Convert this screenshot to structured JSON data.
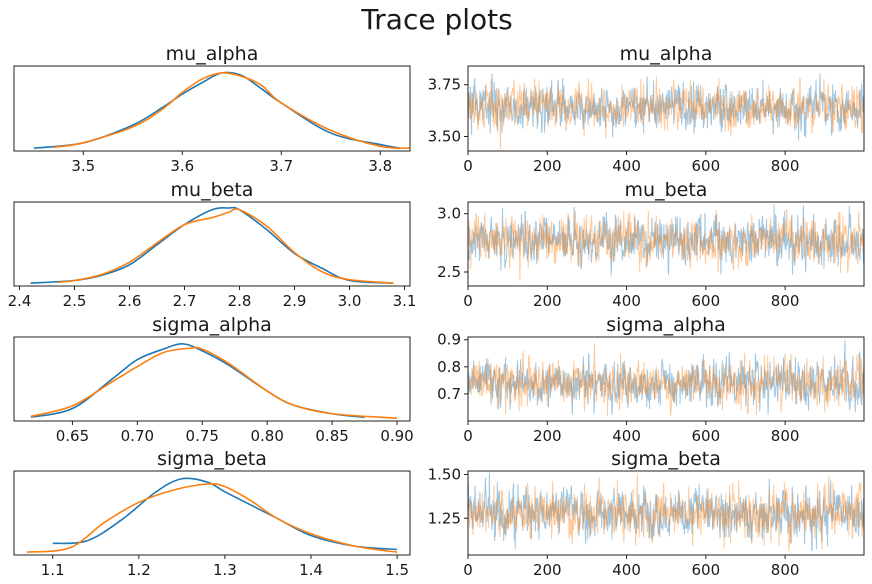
{
  "figure_title": "Trace plots",
  "colors": {
    "chain_1": "#1f77b4",
    "chain_2": "#ff7f0e"
  },
  "chart_data": [
    {
      "type": "line",
      "panel": "density",
      "title": "mu_alpha",
      "xlim": [
        3.43,
        3.83
      ],
      "xticks": [
        3.5,
        3.6,
        3.7,
        3.8
      ],
      "xticklabels": [
        "3.5",
        "3.6",
        "3.7",
        "3.8"
      ],
      "yticks": [],
      "series": [
        {
          "x": [
            3.45,
            3.5,
            3.55,
            3.58,
            3.6,
            3.62,
            3.64,
            3.66,
            3.68,
            3.7,
            3.75,
            3.8,
            3.82
          ],
          "y": [
            0.01,
            0.07,
            0.27,
            0.47,
            0.62,
            0.75,
            0.86,
            0.83,
            0.68,
            0.52,
            0.18,
            0.05,
            0.01
          ]
        },
        {
          "x": [
            3.47,
            3.5,
            3.55,
            3.58,
            3.6,
            3.62,
            3.64,
            3.66,
            3.68,
            3.7,
            3.75,
            3.8,
            3.83
          ],
          "y": [
            0.02,
            0.07,
            0.25,
            0.45,
            0.64,
            0.79,
            0.86,
            0.82,
            0.72,
            0.52,
            0.21,
            0.03,
            0.01
          ]
        }
      ]
    },
    {
      "type": "line",
      "panel": "trace",
      "title": "mu_alpha",
      "xlim": [
        0,
        999
      ],
      "ylim": [
        3.43,
        3.84
      ],
      "xticks": [
        0,
        200,
        400,
        600,
        800
      ],
      "xticklabels": [
        "0",
        "200",
        "400",
        "600",
        "800"
      ],
      "yticks": [
        3.5,
        3.75
      ],
      "yticklabels": [
        "3.50",
        "3.75"
      ],
      "n_draws": 1000,
      "center": 3.64,
      "spread": 0.055,
      "min": 3.44,
      "max": 3.83
    },
    {
      "type": "line",
      "panel": "density",
      "title": "mu_beta",
      "xlim": [
        2.39,
        3.11
      ],
      "xticks": [
        2.4,
        2.5,
        2.6,
        2.7,
        2.8,
        2.9,
        3.0,
        3.1
      ],
      "xticklabels": [
        "2.4",
        "2.5",
        "2.6",
        "2.7",
        "2.8",
        "2.9",
        "3.0",
        "3.1"
      ],
      "yticks": [],
      "series": [
        {
          "x": [
            2.42,
            2.5,
            2.55,
            2.6,
            2.65,
            2.7,
            2.75,
            2.78,
            2.8,
            2.85,
            2.9,
            2.95,
            3.0,
            3.08
          ],
          "y": [
            0.01,
            0.04,
            0.1,
            0.22,
            0.45,
            0.68,
            0.85,
            0.87,
            0.85,
            0.62,
            0.35,
            0.18,
            0.04,
            0.01
          ]
        },
        {
          "x": [
            2.47,
            2.5,
            2.55,
            2.6,
            2.65,
            2.7,
            2.75,
            2.78,
            2.8,
            2.85,
            2.9,
            2.95,
            3.0,
            3.08
          ],
          "y": [
            0.02,
            0.04,
            0.11,
            0.25,
            0.47,
            0.68,
            0.76,
            0.82,
            0.85,
            0.66,
            0.36,
            0.14,
            0.05,
            0.01
          ]
        }
      ]
    },
    {
      "type": "line",
      "panel": "trace",
      "title": "mu_beta",
      "xlim": [
        0,
        999
      ],
      "ylim": [
        2.38,
        3.1
      ],
      "xticks": [
        0,
        200,
        400,
        600,
        800
      ],
      "xticklabels": [
        "0",
        "200",
        "400",
        "600",
        "800"
      ],
      "yticks": [
        2.5,
        3.0
      ],
      "yticklabels": [
        "2.5",
        "3.0"
      ],
      "n_draws": 1000,
      "center": 2.77,
      "spread": 0.1,
      "min": 2.42,
      "max": 3.08
    },
    {
      "type": "line",
      "panel": "density",
      "title": "sigma_alpha",
      "xlim": [
        0.605,
        0.91
      ],
      "xticks": [
        0.65,
        0.7,
        0.75,
        0.8,
        0.85,
        0.9
      ],
      "xticklabels": [
        "0.65",
        "0.70",
        "0.75",
        "0.80",
        "0.85",
        "0.90"
      ],
      "yticks": [],
      "series": [
        {
          "x": [
            0.618,
            0.65,
            0.68,
            0.7,
            0.72,
            0.735,
            0.75,
            0.77,
            0.8,
            0.82,
            0.85,
            0.875
          ],
          "y": [
            0.02,
            0.12,
            0.45,
            0.68,
            0.8,
            0.86,
            0.78,
            0.62,
            0.32,
            0.16,
            0.06,
            0.02
          ]
        },
        {
          "x": [
            0.618,
            0.65,
            0.68,
            0.7,
            0.72,
            0.74,
            0.75,
            0.77,
            0.8,
            0.82,
            0.85,
            0.9
          ],
          "y": [
            0.03,
            0.15,
            0.42,
            0.6,
            0.76,
            0.81,
            0.8,
            0.64,
            0.32,
            0.16,
            0.06,
            0.01
          ]
        }
      ]
    },
    {
      "type": "line",
      "panel": "trace",
      "title": "sigma_alpha",
      "xlim": [
        0,
        999
      ],
      "ylim": [
        0.6,
        0.91
      ],
      "xticks": [
        0,
        200,
        400,
        600,
        800
      ],
      "xticklabels": [
        "0",
        "200",
        "400",
        "600",
        "800"
      ],
      "yticks": [
        0.7,
        0.8,
        0.9
      ],
      "yticklabels": [
        "0.7",
        "0.8",
        "0.9"
      ],
      "n_draws": 1000,
      "center": 0.74,
      "spread": 0.042,
      "min": 0.62,
      "max": 0.9
    },
    {
      "type": "line",
      "panel": "density",
      "title": "sigma_beta",
      "xlim": [
        1.055,
        1.515
      ],
      "xticks": [
        1.1,
        1.2,
        1.3,
        1.4,
        1.5
      ],
      "xticklabels": [
        "1.1",
        "1.2",
        "1.3",
        "1.4",
        "1.5"
      ],
      "yticks": [],
      "series": [
        {
          "x": [
            1.1,
            1.14,
            1.18,
            1.22,
            1.25,
            1.28,
            1.3,
            1.33,
            1.36,
            1.4,
            1.45,
            1.5
          ],
          "y": [
            0.11,
            0.14,
            0.38,
            0.7,
            0.85,
            0.81,
            0.7,
            0.55,
            0.4,
            0.2,
            0.08,
            0.04
          ]
        },
        {
          "x": [
            1.07,
            1.12,
            1.16,
            1.2,
            1.24,
            1.28,
            1.3,
            1.33,
            1.36,
            1.4,
            1.45,
            1.5
          ],
          "y": [
            0.01,
            0.06,
            0.35,
            0.58,
            0.72,
            0.79,
            0.76,
            0.6,
            0.4,
            0.22,
            0.08,
            0.01
          ]
        }
      ]
    },
    {
      "type": "line",
      "panel": "trace",
      "title": "sigma_beta",
      "xlim": [
        0,
        999
      ],
      "ylim": [
        1.04,
        1.52
      ],
      "xticks": [
        0,
        200,
        400,
        600,
        800
      ],
      "xticklabels": [
        "0",
        "200",
        "400",
        "600",
        "800"
      ],
      "yticks": [
        1.25,
        1.5
      ],
      "yticklabels": [
        "1.25",
        "1.50"
      ],
      "n_draws": 1000,
      "center": 1.28,
      "spread": 0.07,
      "min": 1.06,
      "max": 1.51
    }
  ]
}
